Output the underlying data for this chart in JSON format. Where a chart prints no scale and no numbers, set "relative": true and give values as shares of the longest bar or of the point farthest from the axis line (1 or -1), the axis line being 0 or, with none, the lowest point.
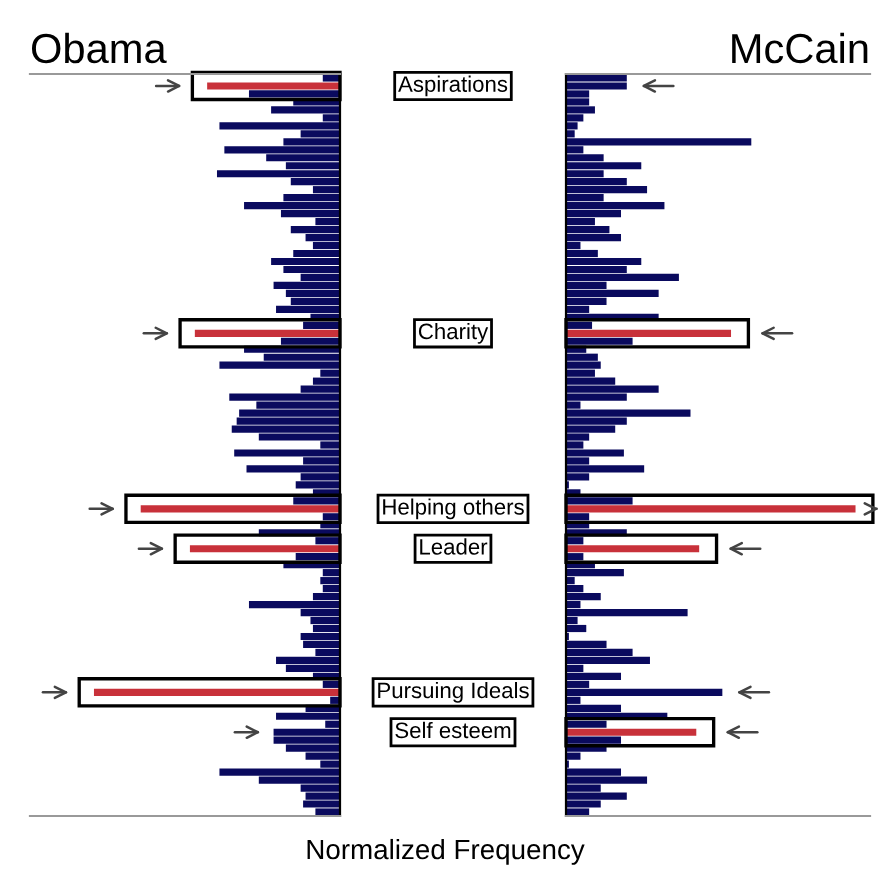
{
  "chart_data": [
    {
      "type": "bar",
      "orientation": "horizontal",
      "relative": true,
      "title": "Obama",
      "xlabel": "Normalized Frequency",
      "color": "#0a0a5e",
      "legend": false,
      "categories": [
        null,
        "Aspirations",
        null,
        null,
        null,
        null,
        null,
        null,
        null,
        null,
        null,
        null,
        null,
        null,
        null,
        null,
        null,
        null,
        null,
        null,
        null,
        null,
        null,
        null,
        null,
        null,
        null,
        null,
        null,
        null,
        null,
        null,
        "Charity",
        null,
        null,
        null,
        null,
        null,
        null,
        null,
        null,
        null,
        null,
        null,
        null,
        null,
        null,
        null,
        null,
        null,
        null,
        null,
        null,
        null,
        "Helping others",
        null,
        null,
        null,
        null,
        "Leader",
        null,
        null,
        null,
        null,
        null,
        null,
        null,
        null,
        null,
        null,
        null,
        null,
        null,
        null,
        null,
        null,
        null,
        "Pursuing Ideals",
        null,
        null,
        null,
        null,
        "Self esteem",
        null,
        null,
        null,
        null,
        null,
        null,
        null,
        null,
        null,
        null
      ],
      "values": [
        0.07,
        0.54,
        0.37,
        0.19,
        0.28,
        0.07,
        0.49,
        0.16,
        0.23,
        0.47,
        0.3,
        0.22,
        0.5,
        0.2,
        0.11,
        0.23,
        0.39,
        0.24,
        0.1,
        0.2,
        0.14,
        0.11,
        0.19,
        0.28,
        0.23,
        0.16,
        0.27,
        0.22,
        0.2,
        0.26,
        0.12,
        0.15,
        0.59,
        0.24,
        0.39,
        0.31,
        0.49,
        0.08,
        0.11,
        0.16,
        0.45,
        0.34,
        0.41,
        0.42,
        0.44,
        0.33,
        0.08,
        0.43,
        0.15,
        0.38,
        0.16,
        0.18,
        0.11,
        0.19,
        0.81,
        0.07,
        0.08,
        0.33,
        0.1,
        0.61,
        0.18,
        0.23,
        0.07,
        0.08,
        0.07,
        0.11,
        0.37,
        0.16,
        0.12,
        0.11,
        0.16,
        0.15,
        0.1,
        0.26,
        0.22,
        0.11,
        0.07,
        1.0,
        0.04,
        0.14,
        0.26,
        0.06,
        0.27,
        0.27,
        0.22,
        0.14,
        0.08,
        0.49,
        0.33,
        0.16,
        0.14,
        0.15,
        0.1
      ],
      "colors": [
        "#0a0a5e",
        "#c8313a",
        "#0a0a5e",
        "#0a0a5e",
        "#0a0a5e",
        "#0a0a5e",
        "#0a0a5e",
        "#0a0a5e",
        "#0a0a5e",
        "#0a0a5e",
        "#0a0a5e",
        "#0a0a5e",
        "#0a0a5e",
        "#0a0a5e",
        "#0a0a5e",
        "#0a0a5e",
        "#0a0a5e",
        "#0a0a5e",
        "#0a0a5e",
        "#0a0a5e",
        "#0a0a5e",
        "#0a0a5e",
        "#0a0a5e",
        "#0a0a5e",
        "#0a0a5e",
        "#0a0a5e",
        "#0a0a5e",
        "#0a0a5e",
        "#0a0a5e",
        "#0a0a5e",
        "#0a0a5e",
        "#0a0a5e",
        "#c8313a",
        "#0a0a5e",
        "#0a0a5e",
        "#0a0a5e",
        "#0a0a5e",
        "#0a0a5e",
        "#0a0a5e",
        "#0a0a5e",
        "#0a0a5e",
        "#0a0a5e",
        "#0a0a5e",
        "#0a0a5e",
        "#0a0a5e",
        "#0a0a5e",
        "#0a0a5e",
        "#0a0a5e",
        "#0a0a5e",
        "#0a0a5e",
        "#0a0a5e",
        "#0a0a5e",
        "#0a0a5e",
        "#0a0a5e",
        "#c8313a",
        "#0a0a5e",
        "#0a0a5e",
        "#0a0a5e",
        "#0a0a5e",
        "#c8313a",
        "#0a0a5e",
        "#0a0a5e",
        "#0a0a5e",
        "#0a0a5e",
        "#0a0a5e",
        "#0a0a5e",
        "#0a0a5e",
        "#0a0a5e",
        "#0a0a5e",
        "#0a0a5e",
        "#0a0a5e",
        "#0a0a5e",
        "#0a0a5e",
        "#0a0a5e",
        "#0a0a5e",
        "#0a0a5e",
        "#0a0a5e",
        "#c8313a",
        "#0a0a5e",
        "#0a0a5e",
        "#0a0a5e",
        "#0a0a5e",
        "#0a0a5e",
        "#0a0a5e",
        "#0a0a5e",
        "#0a0a5e",
        "#0a0a5e",
        "#0a0a5e",
        "#0a0a5e",
        "#0a0a5e",
        "#0a0a5e",
        "#0a0a5e",
        "#0a0a5e"
      ]
    },
    {
      "type": "bar",
      "orientation": "horizontal",
      "relative": true,
      "title": "McCain",
      "color": "#0a0a5e",
      "legend": false,
      "categories": [
        null,
        null,
        null,
        null,
        null,
        null,
        null,
        null,
        null,
        null,
        null,
        null,
        null,
        null,
        null,
        null,
        null,
        null,
        null,
        null,
        null,
        null,
        null,
        null,
        null,
        null,
        null,
        null,
        null,
        null,
        null,
        null,
        null,
        null,
        null,
        null,
        null,
        null,
        null,
        null,
        null,
        null,
        null,
        null,
        null,
        null,
        null,
        null,
        null,
        null,
        null,
        null,
        null,
        null,
        null,
        null,
        null,
        null,
        null,
        null,
        null,
        null,
        null,
        null,
        null,
        null,
        null,
        null,
        null,
        null,
        null,
        null,
        null,
        null,
        null,
        null,
        null,
        null,
        null,
        null,
        null,
        null,
        null,
        null,
        null,
        null,
        null,
        null,
        null,
        null,
        null,
        null,
        null
      ],
      "values": [
        0.21,
        0.21,
        0.08,
        0.08,
        0.1,
        0.06,
        0.04,
        0.03,
        0.64,
        0.06,
        0.13,
        0.26,
        0.13,
        0.21,
        0.28,
        0.13,
        0.34,
        0.19,
        0.1,
        0.15,
        0.19,
        0.05,
        0.11,
        0.26,
        0.21,
        0.39,
        0.14,
        0.32,
        0.14,
        0.08,
        0.32,
        0.09,
        0.57,
        0.23,
        0.07,
        0.11,
        0.12,
        0.1,
        0.17,
        0.32,
        0.21,
        0.05,
        0.43,
        0.21,
        0.17,
        0.08,
        0.06,
        0.2,
        0.08,
        0.27,
        0.08,
        0.01,
        0.05,
        0.23,
        1.0,
        0.08,
        0.08,
        0.21,
        0.06,
        0.46,
        0.06,
        0.1,
        0.2,
        0.03,
        0.06,
        0.12,
        0.05,
        0.42,
        0.04,
        0.07,
        0.01,
        0.14,
        0.23,
        0.29,
        0.06,
        0.19,
        0.08,
        0.54,
        0.05,
        0.19,
        0.35,
        0.14,
        0.45,
        0.19,
        0.14,
        0.05,
        0.01,
        0.19,
        0.28,
        0.12,
        0.21,
        0.12,
        0.08
      ],
      "colors": [
        "#0a0a5e",
        "#0a0a5e",
        "#0a0a5e",
        "#0a0a5e",
        "#0a0a5e",
        "#0a0a5e",
        "#0a0a5e",
        "#0a0a5e",
        "#0a0a5e",
        "#0a0a5e",
        "#0a0a5e",
        "#0a0a5e",
        "#0a0a5e",
        "#0a0a5e",
        "#0a0a5e",
        "#0a0a5e",
        "#0a0a5e",
        "#0a0a5e",
        "#0a0a5e",
        "#0a0a5e",
        "#0a0a5e",
        "#0a0a5e",
        "#0a0a5e",
        "#0a0a5e",
        "#0a0a5e",
        "#0a0a5e",
        "#0a0a5e",
        "#0a0a5e",
        "#0a0a5e",
        "#0a0a5e",
        "#0a0a5e",
        "#0a0a5e",
        "#c8313a",
        "#0a0a5e",
        "#0a0a5e",
        "#0a0a5e",
        "#0a0a5e",
        "#0a0a5e",
        "#0a0a5e",
        "#0a0a5e",
        "#0a0a5e",
        "#0a0a5e",
        "#0a0a5e",
        "#0a0a5e",
        "#0a0a5e",
        "#0a0a5e",
        "#0a0a5e",
        "#0a0a5e",
        "#0a0a5e",
        "#0a0a5e",
        "#0a0a5e",
        "#0a0a5e",
        "#0a0a5e",
        "#0a0a5e",
        "#c8313a",
        "#0a0a5e",
        "#0a0a5e",
        "#0a0a5e",
        "#0a0a5e",
        "#c8313a",
        "#0a0a5e",
        "#0a0a5e",
        "#0a0a5e",
        "#0a0a5e",
        "#0a0a5e",
        "#0a0a5e",
        "#0a0a5e",
        "#0a0a5e",
        "#0a0a5e",
        "#0a0a5e",
        "#0a0a5e",
        "#0a0a5e",
        "#0a0a5e",
        "#0a0a5e",
        "#0a0a5e",
        "#0a0a5e",
        "#0a0a5e",
        "#0a0a5e",
        "#0a0a5e",
        "#0a0a5e",
        "#0a0a5e",
        "#0a0a5e",
        "#c8313a",
        "#0a0a5e",
        "#0a0a5e",
        "#0a0a5e",
        "#0a0a5e",
        "#0a0a5e",
        "#0a0a5e",
        "#0a0a5e",
        "#0a0a5e",
        "#0a0a5e",
        "#0a0a5e"
      ]
    }
  ]
}
